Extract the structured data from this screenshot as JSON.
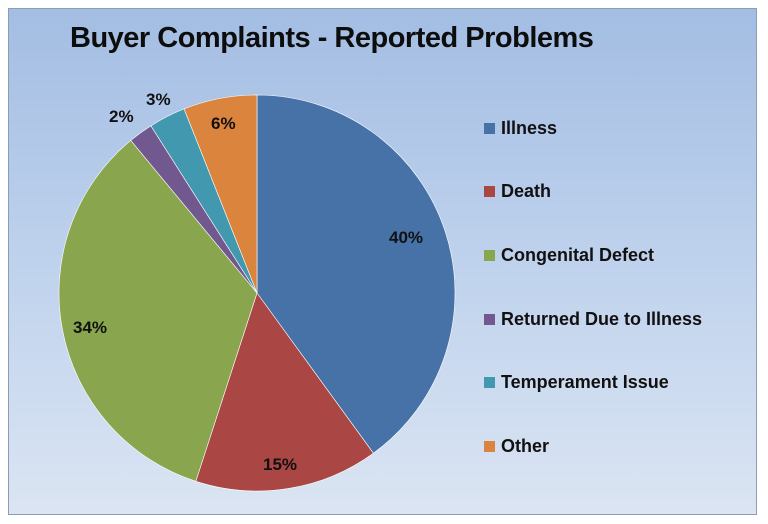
{
  "chart_data": {
    "type": "pie",
    "title": "Buyer Complaints - Reported Problems",
    "categories": [
      "Illness",
      "Death",
      "Congenital Defect",
      "Returned Due to Illness",
      "Temperament Issue",
      "Other"
    ],
    "values": [
      40,
      15,
      34,
      2,
      3,
      6
    ],
    "labels": [
      "40%",
      "15%",
      "34%",
      "2%",
      "3%",
      "6%"
    ],
    "colors": [
      "#4672a8",
      "#aa4643",
      "#89a54e",
      "#71588f",
      "#4198af",
      "#db843d"
    ],
    "legend_position": "right",
    "start_angle_deg": 0,
    "direction": "clockwise"
  },
  "title": "Buyer Complaints - Reported Problems",
  "legend": [
    {
      "label": "Illness",
      "color": "#4672a8"
    },
    {
      "label": "Death",
      "color": "#aa4643"
    },
    {
      "label": "Congenital Defect",
      "color": "#89a54e"
    },
    {
      "label": "Returned Due to Illness",
      "color": "#71588f"
    },
    {
      "label": "Temperament Issue",
      "color": "#4198af"
    },
    {
      "label": "Other",
      "color": "#db843d"
    }
  ],
  "data_labels": [
    "40%",
    "15%",
    "34%",
    "2%",
    "3%",
    "6%"
  ]
}
